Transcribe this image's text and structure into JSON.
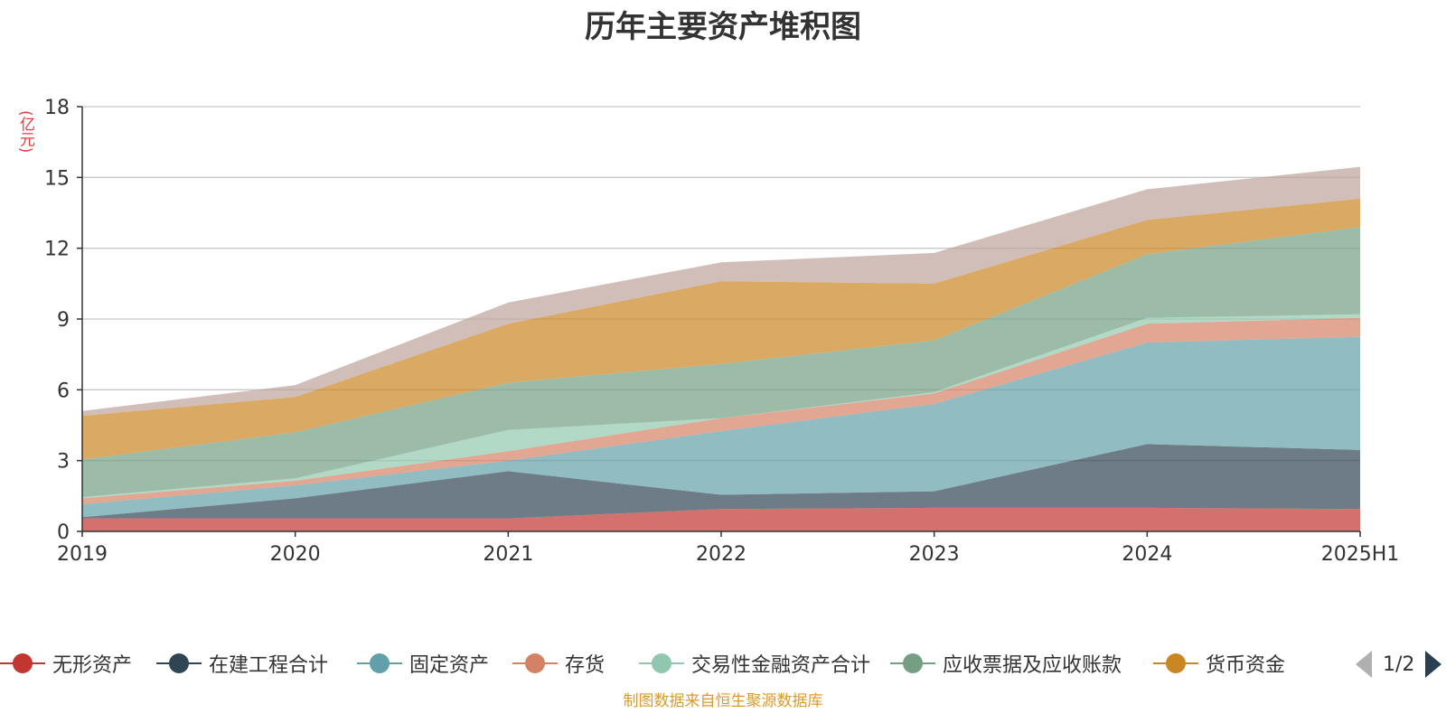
{
  "chart_data": {
    "type": "area",
    "stacked": true,
    "title": "历年主要资产堆积图",
    "ylabel": "(亿元)",
    "ylim": [
      0,
      18
    ],
    "yticks": [
      0,
      3,
      6,
      9,
      12,
      15,
      18
    ],
    "categories": [
      "2019",
      "2020",
      "2021",
      "2022",
      "2023",
      "2024",
      "2025H1"
    ],
    "grid": true,
    "legend_position": "bottom",
    "series": [
      {
        "name": "无形资产",
        "color": "#c23531",
        "values": [
          0.55,
          0.55,
          0.55,
          0.95,
          1.0,
          1.0,
          0.95
        ]
      },
      {
        "name": "在建工程合计",
        "color": "#2f4554",
        "values": [
          0.05,
          0.85,
          2.0,
          0.6,
          0.7,
          2.7,
          2.5
        ]
      },
      {
        "name": "固定资产",
        "color": "#61a0a8",
        "values": [
          0.55,
          0.55,
          0.45,
          2.7,
          3.7,
          4.3,
          4.8
        ]
      },
      {
        "name": "存货",
        "color": "#d48265",
        "values": [
          0.25,
          0.2,
          0.4,
          0.55,
          0.45,
          0.8,
          0.8
        ]
      },
      {
        "name": "交易性金融资产合计",
        "color": "#91c7ae",
        "values": [
          0.05,
          0.1,
          0.9,
          0.0,
          0.05,
          0.25,
          0.15
        ]
      },
      {
        "name": "应收票据及应收账款",
        "color": "#749f83",
        "values": [
          1.6,
          1.95,
          2.0,
          2.3,
          2.2,
          2.7,
          3.7
        ]
      },
      {
        "name": "货币资金",
        "color": "#ca8622",
        "values": [
          1.85,
          1.5,
          2.5,
          3.5,
          2.4,
          1.45,
          1.2
        ]
      },
      {
        "name": "",
        "color": "#bda29a",
        "values": [
          0.2,
          0.5,
          0.9,
          0.8,
          1.3,
          1.3,
          1.35
        ]
      }
    ]
  },
  "legend": {
    "pager_text": "1/2"
  },
  "source_note": "制图数据来自恒生聚源数据库"
}
